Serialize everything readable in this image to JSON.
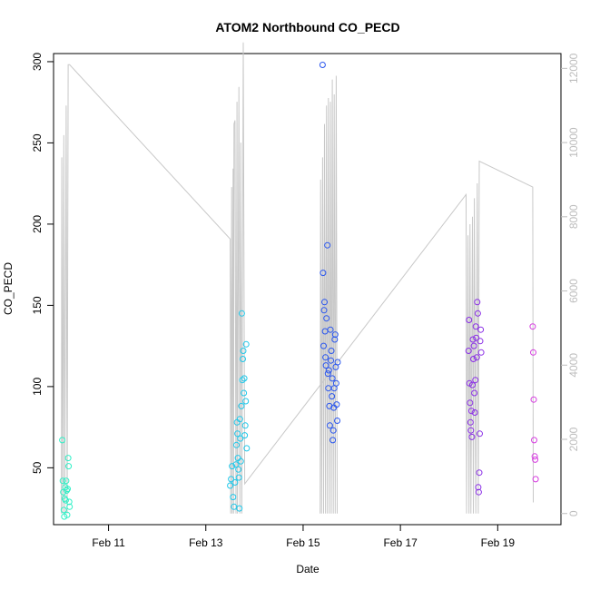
{
  "chart_data": {
    "type": "scatter",
    "title": "ATOM2 Northbound CO_PECD",
    "xlabel": "Date",
    "ylabel": "CO_PECD",
    "ylim": [
      15,
      305
    ],
    "yticks": [
      50,
      100,
      150,
      200,
      250,
      300
    ],
    "y2lim": [
      -300,
      12400
    ],
    "y2ticks": [
      0,
      2000,
      4000,
      6000,
      8000,
      10000,
      12000
    ],
    "y2_color": "#bdbdbd",
    "xlim_days": [
      9.87,
      20.3
    ],
    "xticks": [
      {
        "label": "Feb 11",
        "day": 11
      },
      {
        "label": "Feb 13",
        "day": 13
      },
      {
        "label": "Feb 15",
        "day": 15
      },
      {
        "label": "Feb 17",
        "day": 17
      },
      {
        "label": "Feb 19",
        "day": 19
      }
    ],
    "points_note": "x = day of February, y = CO_PECD; color graded by time (teal -> blue -> purple -> magenta)",
    "series": [
      {
        "color": "#2ef0c6",
        "points": [
          [
            10.05,
            67
          ],
          [
            10.06,
            42
          ],
          [
            10.07,
            35
          ],
          [
            10.08,
            24
          ],
          [
            10.09,
            20
          ],
          [
            10.1,
            31
          ],
          [
            10.11,
            38
          ],
          [
            10.12,
            30
          ],
          [
            10.13,
            42
          ],
          [
            10.14,
            36
          ],
          [
            10.15,
            21
          ],
          [
            10.16,
            37
          ],
          [
            10.17,
            56
          ],
          [
            10.18,
            51
          ],
          [
            10.19,
            29
          ],
          [
            10.2,
            26
          ]
        ]
      },
      {
        "color": "#1fc8ea",
        "points": [
          [
            13.5,
            39
          ],
          [
            13.52,
            43
          ],
          [
            13.54,
            51
          ],
          [
            13.56,
            32
          ],
          [
            13.58,
            26
          ],
          [
            13.6,
            41
          ],
          [
            13.62,
            52
          ],
          [
            13.63,
            64
          ],
          [
            13.64,
            78
          ],
          [
            13.65,
            71
          ],
          [
            13.66,
            56
          ],
          [
            13.67,
            49
          ],
          [
            13.68,
            44
          ],
          [
            13.69,
            25
          ],
          [
            13.7,
            80
          ],
          [
            13.71,
            68
          ],
          [
            13.72,
            54
          ],
          [
            13.73,
            88
          ],
          [
            13.74,
            145
          ],
          [
            13.75,
            104
          ],
          [
            13.76,
            117
          ],
          [
            13.77,
            122
          ],
          [
            13.78,
            96
          ],
          [
            13.79,
            105
          ],
          [
            13.8,
            70
          ],
          [
            13.81,
            76
          ],
          [
            13.82,
            91
          ],
          [
            13.83,
            126
          ],
          [
            13.84,
            62
          ]
        ]
      },
      {
        "color": "#2a56ee",
        "points": [
          [
            15.4,
            298
          ],
          [
            15.41,
            170
          ],
          [
            15.42,
            125
          ],
          [
            15.43,
            147
          ],
          [
            15.44,
            152
          ],
          [
            15.45,
            134
          ],
          [
            15.46,
            118
          ],
          [
            15.47,
            113
          ],
          [
            15.48,
            142
          ],
          [
            15.5,
            187
          ],
          [
            15.51,
            108
          ],
          [
            15.52,
            99
          ],
          [
            15.53,
            110
          ],
          [
            15.54,
            88
          ],
          [
            15.55,
            76
          ],
          [
            15.56,
            135
          ],
          [
            15.57,
            116
          ],
          [
            15.58,
            122
          ],
          [
            15.59,
            94
          ],
          [
            15.6,
            105
          ],
          [
            15.61,
            67
          ],
          [
            15.62,
            73
          ],
          [
            15.63,
            87
          ],
          [
            15.64,
            99
          ],
          [
            15.65,
            129
          ],
          [
            15.66,
            132
          ],
          [
            15.67,
            112
          ],
          [
            15.68,
            102
          ],
          [
            15.69,
            89
          ],
          [
            15.7,
            79
          ],
          [
            15.71,
            115
          ]
        ]
      },
      {
        "color": "#8a2ee6",
        "points": [
          [
            18.4,
            122
          ],
          [
            18.41,
            141
          ],
          [
            18.42,
            102
          ],
          [
            18.43,
            90
          ],
          [
            18.44,
            78
          ],
          [
            18.45,
            73
          ],
          [
            18.46,
            85
          ],
          [
            18.47,
            69
          ],
          [
            18.48,
            101
          ],
          [
            18.49,
            129
          ],
          [
            18.5,
            117
          ],
          [
            18.51,
            125
          ],
          [
            18.52,
            96
          ],
          [
            18.53,
            84
          ],
          [
            18.54,
            104
          ],
          [
            18.55,
            137
          ],
          [
            18.56,
            130
          ],
          [
            18.57,
            118
          ],
          [
            18.58,
            152
          ],
          [
            18.59,
            145
          ],
          [
            18.6,
            38
          ],
          [
            18.61,
            35
          ],
          [
            18.62,
            47
          ],
          [
            18.63,
            71
          ],
          [
            18.64,
            128
          ],
          [
            18.65,
            135
          ],
          [
            18.66,
            121
          ]
        ]
      },
      {
        "color": "#d63ae0",
        "points": [
          [
            19.72,
            137
          ],
          [
            19.73,
            121
          ],
          [
            19.74,
            92
          ],
          [
            19.75,
            67
          ],
          [
            19.76,
            57
          ],
          [
            19.77,
            55
          ],
          [
            19.78,
            43
          ]
        ]
      }
    ],
    "secondary_line": {
      "color": "#c8c8c8",
      "points": [
        [
          10.03,
          0
        ],
        [
          10.04,
          9600
        ],
        [
          10.06,
          0
        ],
        [
          10.08,
          10200
        ],
        [
          10.1,
          0
        ],
        [
          10.13,
          11000
        ],
        [
          10.15,
          0
        ],
        [
          10.17,
          12100
        ],
        [
          10.2,
          12100
        ],
        [
          13.5,
          7400
        ],
        [
          13.51,
          0
        ],
        [
          13.53,
          8800
        ],
        [
          13.54,
          0
        ],
        [
          13.56,
          9300
        ],
        [
          13.57,
          0
        ],
        [
          13.58,
          10500
        ],
        [
          13.6,
          10600
        ],
        [
          13.62,
          0
        ],
        [
          13.64,
          11100
        ],
        [
          13.65,
          0
        ],
        [
          13.68,
          11500
        ],
        [
          13.7,
          0
        ],
        [
          13.72,
          10000
        ],
        [
          13.74,
          0
        ],
        [
          13.77,
          12700
        ],
        [
          13.8,
          800
        ],
        [
          18.35,
          8600
        ],
        [
          18.36,
          0
        ],
        [
          18.39,
          7500
        ],
        [
          18.41,
          0
        ],
        [
          18.43,
          7800
        ],
        [
          18.45,
          0
        ],
        [
          18.48,
          8000
        ],
        [
          18.5,
          0
        ],
        [
          18.52,
          8500
        ],
        [
          18.55,
          0
        ],
        [
          18.58,
          8900
        ],
        [
          18.6,
          0
        ],
        [
          18.62,
          9500
        ],
        [
          19.72,
          8800
        ],
        [
          19.73,
          300
        ]
      ]
    },
    "secondary_line_b": {
      "color": "#c8c8c8",
      "points": [
        [
          15.35,
          0
        ],
        [
          15.36,
          9000
        ],
        [
          15.38,
          0
        ],
        [
          15.4,
          9600
        ],
        [
          15.42,
          0
        ],
        [
          15.44,
          10500
        ],
        [
          15.46,
          0
        ],
        [
          15.48,
          11000
        ],
        [
          15.5,
          0
        ],
        [
          15.52,
          11200
        ],
        [
          15.54,
          0
        ],
        [
          15.56,
          11100
        ],
        [
          15.58,
          0
        ],
        [
          15.6,
          11700
        ],
        [
          15.62,
          0
        ],
        [
          15.64,
          11300
        ],
        [
          15.66,
          0
        ],
        [
          15.68,
          11800
        ],
        [
          15.7,
          0
        ]
      ]
    }
  }
}
